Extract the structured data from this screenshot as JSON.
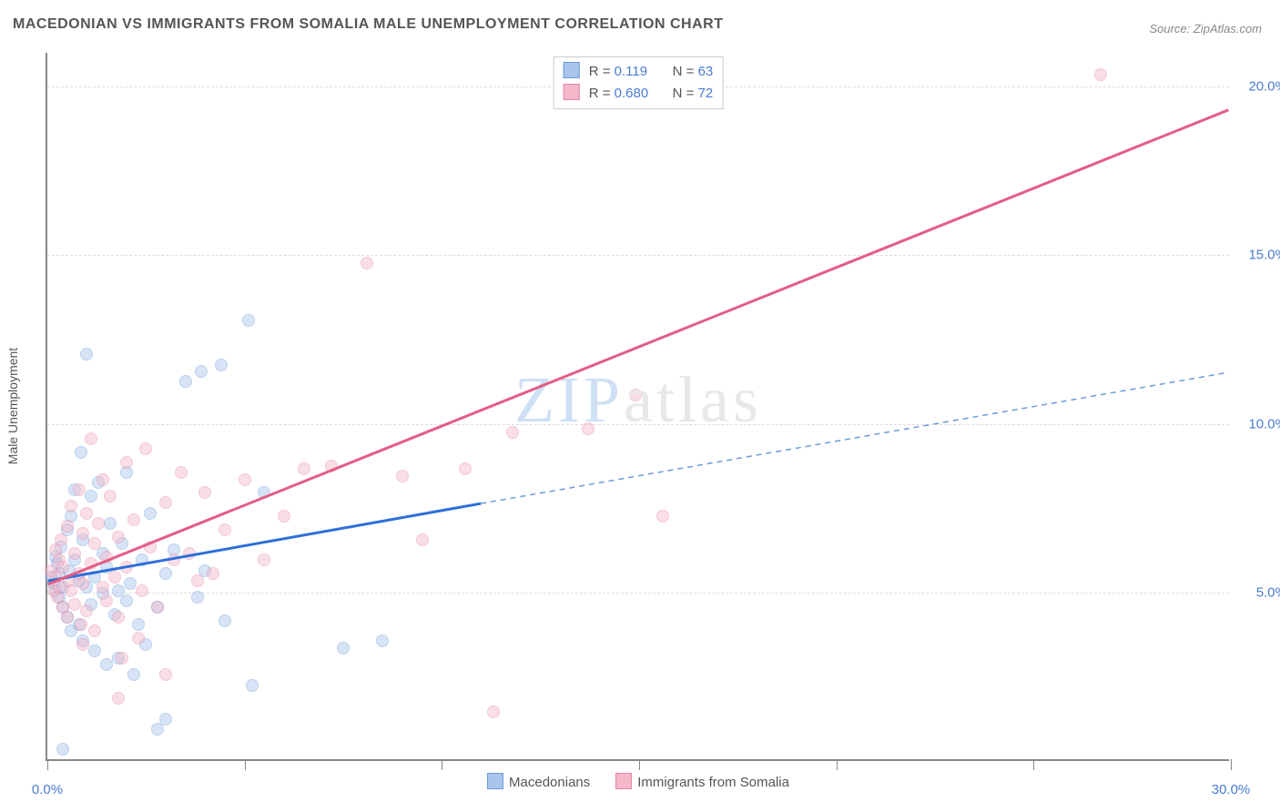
{
  "title": "MACEDONIAN VS IMMIGRANTS FROM SOMALIA MALE UNEMPLOYMENT CORRELATION CHART",
  "source": "Source: ZipAtlas.com",
  "ylabel": "Male Unemployment",
  "watermark_pre": "ZIP",
  "watermark_post": "atlas",
  "chart": {
    "type": "scatter-with-regression",
    "background_color": "#ffffff",
    "grid_color": "#dddddd",
    "axis_color": "#888888",
    "label_color": "#4a7bd0",
    "xlim": [
      0,
      30
    ],
    "ylim": [
      0,
      21
    ],
    "x_ticks": [
      0,
      5,
      10,
      15,
      20,
      25,
      30
    ],
    "x_tick_labels": {
      "0": "0.0%",
      "30": "30.0%"
    },
    "y_ticks": [
      5,
      10,
      15,
      20
    ],
    "y_tick_labels": {
      "5": "5.0%",
      "10": "10.0%",
      "15": "15.0%",
      "20": "20.0%"
    },
    "point_radius": 7,
    "point_opacity": 0.45,
    "series": [
      {
        "key": "macedonians",
        "label": "Macedonians",
        "color_fill": "#a8c5ec",
        "color_stroke": "#6b9bd8",
        "r": "0.119",
        "n": "63",
        "regression": {
          "solid": {
            "x1": 0,
            "y1": 5.3,
            "x2": 11,
            "y2": 7.6,
            "color": "#2e6fd8",
            "width": 3,
            "dash": "none"
          },
          "dashed": {
            "x1": 11,
            "y1": 7.6,
            "x2": 30,
            "y2": 11.5,
            "color": "#6b9bd8",
            "width": 1.5,
            "dash": "6,5"
          }
        },
        "points": [
          [
            0.1,
            5.4
          ],
          [
            0.15,
            5.2
          ],
          [
            0.2,
            6.0
          ],
          [
            0.2,
            5.0
          ],
          [
            0.25,
            5.8
          ],
          [
            0.3,
            4.8
          ],
          [
            0.3,
            5.5
          ],
          [
            0.35,
            6.3
          ],
          [
            0.4,
            4.5
          ],
          [
            0.4,
            5.1
          ],
          [
            0.5,
            6.8
          ],
          [
            0.5,
            4.2
          ],
          [
            0.55,
            5.6
          ],
          [
            0.6,
            7.2
          ],
          [
            0.6,
            3.8
          ],
          [
            0.7,
            5.9
          ],
          [
            0.7,
            8.0
          ],
          [
            0.8,
            4.0
          ],
          [
            0.8,
            5.3
          ],
          [
            0.85,
            9.1
          ],
          [
            0.9,
            6.5
          ],
          [
            0.9,
            3.5
          ],
          [
            1.0,
            12.0
          ],
          [
            1.0,
            5.1
          ],
          [
            1.1,
            4.6
          ],
          [
            1.1,
            7.8
          ],
          [
            1.2,
            5.4
          ],
          [
            1.2,
            3.2
          ],
          [
            1.3,
            8.2
          ],
          [
            1.4,
            4.9
          ],
          [
            1.4,
            6.1
          ],
          [
            1.5,
            2.8
          ],
          [
            1.5,
            5.7
          ],
          [
            1.6,
            7.0
          ],
          [
            1.7,
            4.3
          ],
          [
            1.8,
            5.0
          ],
          [
            1.8,
            3.0
          ],
          [
            1.9,
            6.4
          ],
          [
            2.0,
            4.7
          ],
          [
            2.0,
            8.5
          ],
          [
            2.1,
            5.2
          ],
          [
            2.2,
            2.5
          ],
          [
            2.3,
            4.0
          ],
          [
            2.4,
            5.9
          ],
          [
            2.5,
            3.4
          ],
          [
            2.6,
            7.3
          ],
          [
            2.8,
            4.5
          ],
          [
            2.8,
            0.9
          ],
          [
            3.0,
            5.5
          ],
          [
            3.0,
            1.2
          ],
          [
            3.2,
            6.2
          ],
          [
            3.5,
            11.2
          ],
          [
            3.8,
            4.8
          ],
          [
            3.9,
            11.5
          ],
          [
            4.0,
            5.6
          ],
          [
            4.4,
            11.7
          ],
          [
            4.5,
            4.1
          ],
          [
            5.1,
            13.0
          ],
          [
            5.2,
            2.2
          ],
          [
            5.5,
            7.9
          ],
          [
            7.5,
            3.3
          ],
          [
            8.5,
            3.5
          ],
          [
            0.4,
            0.3
          ]
        ]
      },
      {
        "key": "somalia",
        "label": "Immigrants from Somalia",
        "color_fill": "#f4b8c8",
        "color_stroke": "#e884a5",
        "r": "0.680",
        "n": "72",
        "regression": {
          "solid": {
            "x1": 0,
            "y1": 5.2,
            "x2": 30,
            "y2": 19.3,
            "color": "#e35d85",
            "width": 3,
            "dash": "none"
          }
        },
        "points": [
          [
            0.1,
            5.6
          ],
          [
            0.15,
            5.0
          ],
          [
            0.2,
            5.4
          ],
          [
            0.2,
            6.2
          ],
          [
            0.25,
            4.8
          ],
          [
            0.3,
            5.9
          ],
          [
            0.3,
            5.1
          ],
          [
            0.35,
            6.5
          ],
          [
            0.4,
            4.5
          ],
          [
            0.4,
            5.7
          ],
          [
            0.5,
            6.9
          ],
          [
            0.5,
            4.2
          ],
          [
            0.55,
            5.3
          ],
          [
            0.6,
            7.5
          ],
          [
            0.6,
            5.0
          ],
          [
            0.7,
            4.6
          ],
          [
            0.7,
            6.1
          ],
          [
            0.8,
            8.0
          ],
          [
            0.8,
            5.5
          ],
          [
            0.85,
            4.0
          ],
          [
            0.9,
            6.7
          ],
          [
            0.9,
            5.2
          ],
          [
            1.0,
            7.3
          ],
          [
            1.0,
            4.4
          ],
          [
            1.1,
            9.5
          ],
          [
            1.1,
            5.8
          ],
          [
            1.2,
            6.4
          ],
          [
            1.2,
            3.8
          ],
          [
            1.3,
            7.0
          ],
          [
            1.4,
            5.1
          ],
          [
            1.4,
            8.3
          ],
          [
            1.5,
            4.7
          ],
          [
            1.5,
            6.0
          ],
          [
            1.6,
            7.8
          ],
          [
            1.7,
            5.4
          ],
          [
            1.8,
            4.2
          ],
          [
            1.8,
            6.6
          ],
          [
            1.9,
            3.0
          ],
          [
            2.0,
            8.8
          ],
          [
            2.0,
            5.7
          ],
          [
            2.2,
            7.1
          ],
          [
            2.4,
            5.0
          ],
          [
            2.5,
            9.2
          ],
          [
            2.6,
            6.3
          ],
          [
            2.8,
            4.5
          ],
          [
            3.0,
            7.6
          ],
          [
            3.0,
            2.5
          ],
          [
            3.2,
            5.9
          ],
          [
            3.4,
            8.5
          ],
          [
            3.6,
            6.1
          ],
          [
            3.8,
            5.3
          ],
          [
            4.0,
            7.9
          ],
          [
            4.2,
            5.5
          ],
          [
            4.5,
            6.8
          ],
          [
            5.0,
            8.3
          ],
          [
            5.5,
            5.9
          ],
          [
            6.0,
            7.2
          ],
          [
            6.5,
            8.6
          ],
          [
            7.2,
            8.7
          ],
          [
            8.1,
            14.7
          ],
          [
            9.0,
            8.4
          ],
          [
            9.5,
            6.5
          ],
          [
            10.6,
            8.6
          ],
          [
            11.3,
            1.4
          ],
          [
            11.8,
            9.7
          ],
          [
            13.7,
            9.8
          ],
          [
            14.9,
            10.8
          ],
          [
            15.6,
            7.2
          ],
          [
            26.7,
            20.3
          ],
          [
            1.8,
            1.8
          ],
          [
            2.3,
            3.6
          ],
          [
            0.9,
            3.4
          ]
        ]
      }
    ],
    "legend_bottom": [
      {
        "label": "Macedonians",
        "fill": "#a8c5ec",
        "stroke": "#6b9bd8"
      },
      {
        "label": "Immigrants from Somalia",
        "fill": "#f4b8c8",
        "stroke": "#e884a5"
      }
    ]
  }
}
